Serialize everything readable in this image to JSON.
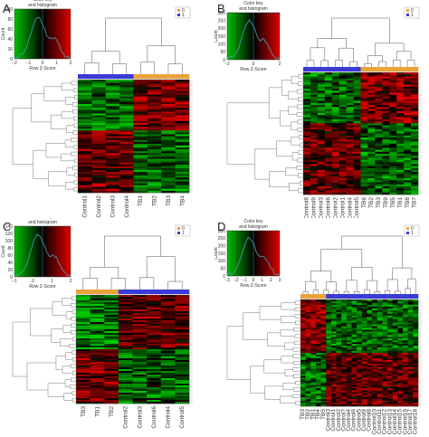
{
  "colors": {
    "group0": "#e8a33a",
    "group1": "#3a3ad8",
    "low": "#00c000",
    "mid": "#000000",
    "high": "#e00000",
    "histogram": "#4aa0b4"
  },
  "panels": [
    {
      "label": "A",
      "key_title_line1": "Color key",
      "key_title_line2": "and histogram",
      "key_ylabel": "Count",
      "key_xlabel": "Row Z-Score",
      "key_yticks": [
        "0",
        "20",
        "40",
        "60",
        "80",
        "100"
      ],
      "key_xticks": [
        "−2",
        "−1",
        "0",
        "1",
        "2"
      ],
      "legend": [
        "0",
        "1"
      ],
      "columns": [
        "Control1",
        "Control2",
        "Control3",
        "Control4",
        "TB1",
        "TB2",
        "TB3",
        "TB4"
      ],
      "column_groups": [
        1,
        1,
        1,
        1,
        0,
        0,
        0,
        0
      ]
    },
    {
      "label": "B",
      "key_title_line1": "Color key",
      "key_title_line2": "and histogram",
      "key_ylabel": "Count",
      "key_xlabel": "Row Z-Score",
      "key_yticks": [
        "0",
        "50",
        "100",
        "150",
        "200",
        "250",
        "300"
      ],
      "key_xticks": [
        "−2",
        "0",
        "2"
      ],
      "legend": [
        "0",
        "1"
      ],
      "columns": [
        "Control8",
        "Control9",
        "Control3",
        "Control6",
        "Control2",
        "Control1",
        "Control4",
        "Control5",
        "TB6",
        "TB2",
        "TB3",
        "TB9",
        "TB5",
        "TB1",
        "TB8",
        "TB7"
      ],
      "column_groups": [
        1,
        1,
        1,
        1,
        1,
        1,
        1,
        1,
        0,
        0,
        0,
        0,
        0,
        0,
        0,
        0
      ]
    },
    {
      "label": "C",
      "key_title_line1": "Color key",
      "key_title_line2": "and histogram",
      "key_ylabel": "Count",
      "key_xlabel": "Row Z-Score",
      "key_yticks": [
        "0",
        "20",
        "40",
        "60",
        "80",
        "100",
        "120",
        "140"
      ],
      "key_xticks": [
        "−1",
        "0",
        "1",
        "2"
      ],
      "legend": [
        "0",
        "1"
      ],
      "columns": [
        "TB3",
        "TB1",
        "TB2",
        "Control2",
        "Control3",
        "Control6",
        "Control4",
        "Control5"
      ],
      "column_groups": [
        0,
        0,
        0,
        1,
        1,
        1,
        1,
        1
      ]
    },
    {
      "label": "D",
      "key_title_line1": "Color key",
      "key_title_line2": "and histogram",
      "key_ylabel": "Count",
      "key_xlabel": "Row Z-Score",
      "key_yticks": [
        "0",
        "50",
        "100",
        "150",
        "200",
        "250",
        "300"
      ],
      "key_xticks": [
        "−3",
        "−2",
        "−1",
        "0",
        "1",
        "2",
        "3"
      ],
      "legend": [
        "0",
        "1"
      ],
      "columns": [
        "TB3",
        "TB2",
        "TB1",
        "TB4",
        "TB5",
        "Control3",
        "Control1",
        "Control2",
        "Control7",
        "Control4",
        "Control6",
        "Control5",
        "Control9",
        "Control8",
        "Control10",
        "Control11",
        "Control12",
        "Control13",
        "Control14",
        "Control15",
        "Control16",
        "Control17",
        "Control18"
      ],
      "column_groups": [
        0,
        0,
        0,
        0,
        0,
        1,
        1,
        1,
        1,
        1,
        1,
        1,
        1,
        1,
        1,
        1,
        1,
        1,
        1,
        1,
        1,
        1,
        1
      ]
    }
  ]
}
